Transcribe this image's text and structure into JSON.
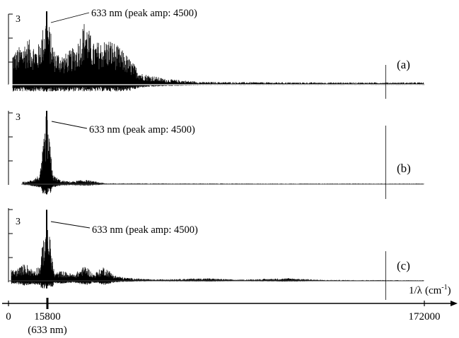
{
  "chart_data": {
    "type": "line",
    "x_axis": {
      "label_text": "1/λ",
      "label_unit": "(cm",
      "label_sup": "-1",
      "label_close": ")",
      "range": [
        0,
        172000
      ],
      "ticks": [
        {
          "value": 0,
          "label": "0",
          "sublabel": ""
        },
        {
          "value": 15800,
          "label": "15800",
          "sublabel": "(633 nm)"
        },
        {
          "value": 172000,
          "label": "172000",
          "sublabel": ""
        }
      ]
    },
    "panels": [
      {
        "id": "a",
        "label": "(a)",
        "y_tick_label": "3",
        "y_tick_value": 3,
        "annotation": "633 nm (peak amp: 4500)",
        "peak_x": 15800,
        "peak_amplitude": 4500,
        "marker_x": 156000,
        "envelope": [
          {
            "x": 3000,
            "a": 1.5
          },
          {
            "x": 8000,
            "a": 2.0
          },
          {
            "x": 12000,
            "a": 1.6
          },
          {
            "x": 15800,
            "a": 3.1
          },
          {
            "x": 19000,
            "a": 1.5
          },
          {
            "x": 23000,
            "a": 1.3
          },
          {
            "x": 28000,
            "a": 1.7
          },
          {
            "x": 31800,
            "a": 2.9
          },
          {
            "x": 35000,
            "a": 1.8
          },
          {
            "x": 42000,
            "a": 2.0
          },
          {
            "x": 48000,
            "a": 1.4
          },
          {
            "x": 55000,
            "a": 0.5
          },
          {
            "x": 65000,
            "a": 0.25
          },
          {
            "x": 80000,
            "a": 0.12
          },
          {
            "x": 120000,
            "a": 0.1
          },
          {
            "x": 155000,
            "a": 0.1
          },
          {
            "x": 172000,
            "a": 0.1
          }
        ]
      },
      {
        "id": "b",
        "label": "(b)",
        "y_tick_label": "3",
        "y_tick_value": 3,
        "annotation": "633 nm (peak amp: 4500)",
        "peak_x": 15800,
        "peak_amplitude": 4500,
        "marker_x": 156000,
        "envelope": [
          {
            "x": 3000,
            "a": 0.08
          },
          {
            "x": 8000,
            "a": 0.12
          },
          {
            "x": 13000,
            "a": 0.4
          },
          {
            "x": 15800,
            "a": 3.1
          },
          {
            "x": 18500,
            "a": 0.4
          },
          {
            "x": 22000,
            "a": 0.15
          },
          {
            "x": 26000,
            "a": 0.12
          },
          {
            "x": 31500,
            "a": 0.2
          },
          {
            "x": 40000,
            "a": 0.04
          },
          {
            "x": 100000,
            "a": 0.03
          },
          {
            "x": 172000,
            "a": 0.03
          }
        ]
      },
      {
        "id": "c",
        "label": "(c)",
        "y_tick_label": "3",
        "y_tick_value": 3,
        "annotation": "633 nm (peak amp: 4500)",
        "peak_x": 15800,
        "peak_amplitude": 4500,
        "marker_x": 156000,
        "envelope": [
          {
            "x": 3000,
            "a": 0.5
          },
          {
            "x": 7000,
            "a": 0.8
          },
          {
            "x": 10000,
            "a": 0.5
          },
          {
            "x": 13000,
            "a": 0.7
          },
          {
            "x": 15800,
            "a": 3.1
          },
          {
            "x": 19000,
            "a": 0.35
          },
          {
            "x": 22000,
            "a": 0.45
          },
          {
            "x": 27000,
            "a": 0.3
          },
          {
            "x": 32000,
            "a": 0.7
          },
          {
            "x": 35000,
            "a": 0.3
          },
          {
            "x": 39500,
            "a": 0.65
          },
          {
            "x": 44000,
            "a": 0.25
          },
          {
            "x": 48000,
            "a": 0.15
          },
          {
            "x": 60000,
            "a": 0.06
          },
          {
            "x": 82000,
            "a": 0.12
          },
          {
            "x": 95000,
            "a": 0.05
          },
          {
            "x": 116000,
            "a": 0.12
          },
          {
            "x": 130000,
            "a": 0.04
          },
          {
            "x": 172000,
            "a": 0.03
          }
        ]
      }
    ],
    "grid": false,
    "legend": "none"
  }
}
